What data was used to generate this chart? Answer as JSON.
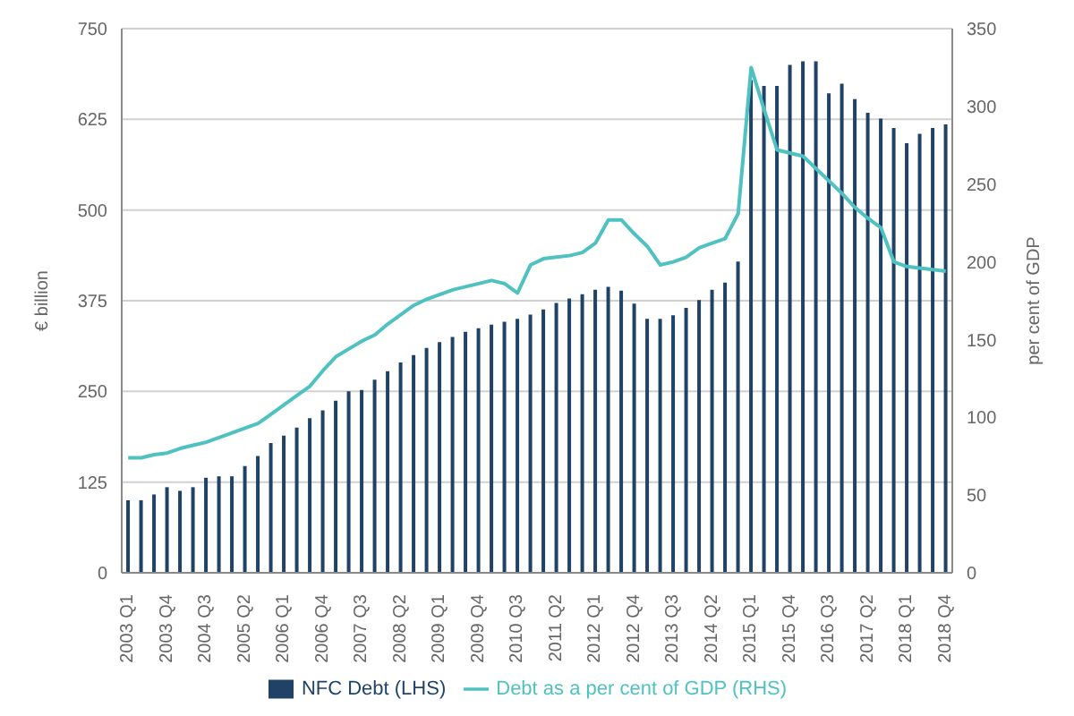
{
  "chart_data": {
    "type": "bar",
    "ylabel": "€ billion",
    "y2label": "per cent of GDP",
    "categories": [
      "2003 Q1",
      null,
      null,
      "2003 Q4",
      null,
      null,
      "2004 Q3",
      null,
      null,
      "2005 Q2",
      null,
      null,
      "2006 Q1",
      null,
      null,
      "2006 Q4",
      null,
      null,
      "2007 Q3",
      null,
      null,
      "2008 Q2",
      null,
      null,
      "2009 Q1",
      null,
      null,
      "2009 Q4",
      null,
      null,
      "2010 Q3",
      null,
      null,
      "2011 Q2",
      null,
      null,
      "2012 Q1",
      null,
      null,
      "2012 Q4",
      null,
      null,
      "2013 Q3",
      null,
      null,
      "2014 Q2",
      null,
      null,
      "2015 Q1",
      null,
      null,
      "2015 Q4",
      null,
      null,
      "2016 Q3",
      null,
      null,
      "2017 Q2",
      null,
      null,
      "2018 Q1",
      null,
      null,
      "2018 Q4"
    ],
    "series": [
      {
        "name": "NFC Debt (LHS)",
        "color": "#1f4266",
        "values": [
          100,
          100,
          108,
          118,
          113,
          118,
          131,
          133,
          133,
          147,
          161,
          179,
          189,
          200,
          213,
          224,
          237,
          250,
          252,
          266,
          278,
          290,
          300,
          310,
          318,
          325,
          332,
          337,
          342,
          346,
          350,
          356,
          363,
          372,
          378,
          384,
          390,
          394,
          389,
          371,
          350,
          350,
          355,
          365,
          376,
          390,
          400,
          429,
          679,
          671,
          671,
          700,
          705,
          705,
          661,
          674,
          653,
          634,
          626,
          613,
          592,
          605,
          613,
          618
        ]
      },
      {
        "name": "Debt as a per cent of GDP (RHS)",
        "type": "line",
        "axis": "y2",
        "color": "#4fc1c1",
        "values": [
          74,
          74,
          76,
          77,
          80,
          82,
          84,
          87,
          90,
          93,
          96,
          102,
          108,
          114,
          120,
          130,
          139,
          144,
          149,
          153,
          160,
          166,
          172,
          176,
          179,
          182,
          184,
          186,
          188,
          186,
          180,
          198,
          202,
          203,
          204,
          206,
          212,
          227,
          227,
          218,
          210,
          198,
          200,
          203,
          209,
          212,
          215,
          231,
          325,
          298,
          272,
          270,
          268,
          260,
          252,
          244,
          235,
          228,
          222,
          200,
          197,
          196,
          195,
          194
        ]
      }
    ],
    "ylim": [
      0,
      750
    ],
    "yticks": [
      0,
      125,
      250,
      375,
      500,
      625,
      750
    ],
    "y2lim": [
      0,
      350
    ],
    "y2ticks": [
      0,
      50,
      100,
      150,
      200,
      250,
      300,
      350
    ],
    "grid": "y",
    "legend": "bottom",
    "marker": "none",
    "line_style": "solid"
  }
}
